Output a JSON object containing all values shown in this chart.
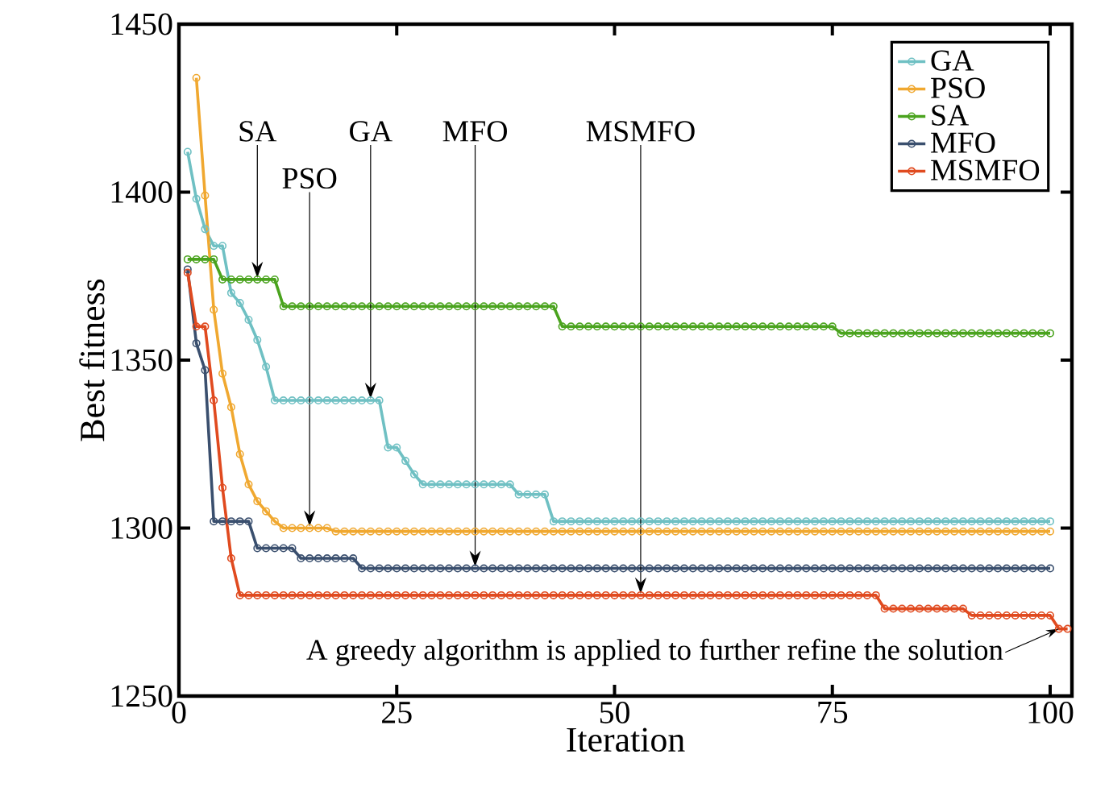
{
  "chart_data": {
    "type": "line",
    "xlabel": "Iteration",
    "ylabel": "Best fitness",
    "x": [
      1,
      2,
      3,
      4,
      5,
      6,
      7,
      8,
      9,
      10,
      11,
      12,
      13,
      14,
      15,
      16,
      17,
      18,
      19,
      20,
      21,
      22,
      23,
      24,
      25,
      26,
      27,
      28,
      29,
      30,
      31,
      32,
      33,
      34,
      35,
      36,
      37,
      38,
      39,
      40,
      41,
      42,
      43,
      44,
      45,
      46,
      47,
      48,
      49,
      50,
      51,
      52,
      53,
      54,
      55,
      56,
      57,
      58,
      59,
      60,
      61,
      62,
      63,
      64,
      65,
      66,
      67,
      68,
      69,
      70,
      71,
      72,
      73,
      74,
      75,
      76,
      77,
      78,
      79,
      80,
      81,
      82,
      83,
      84,
      85,
      86,
      87,
      88,
      89,
      90,
      91,
      92,
      93,
      94,
      95,
      96,
      97,
      98,
      99,
      100
    ],
    "series": [
      {
        "name": "GA",
        "color": "#6fc0c3",
        "values": [
          1412,
          1398,
          1389,
          1384,
          1384,
          1370,
          1367,
          1362,
          1356,
          1348,
          1338,
          1338,
          1338,
          1338,
          1338,
          1338,
          1338,
          1338,
          1338,
          1338,
          1338,
          1338,
          1338,
          1324,
          1324,
          1320,
          1316,
          1313,
          1313,
          1313,
          1313,
          1313,
          1313,
          1313,
          1313,
          1313,
          1313,
          1313,
          1310,
          1310,
          1310,
          1310,
          1302,
          1302,
          1302,
          1302,
          1302,
          1302,
          1302,
          1302,
          1302,
          1302,
          1302,
          1302,
          1302,
          1302,
          1302,
          1302,
          1302,
          1302,
          1302,
          1302,
          1302,
          1302,
          1302,
          1302,
          1302,
          1302,
          1302,
          1302,
          1302,
          1302,
          1302,
          1302,
          1302,
          1302,
          1302,
          1302,
          1302,
          1302,
          1302,
          1302,
          1302,
          1302,
          1302,
          1302,
          1302,
          1302,
          1302,
          1302,
          1302,
          1302,
          1302,
          1302,
          1302,
          1302,
          1302,
          1302,
          1302,
          1302
        ]
      },
      {
        "name": "PSO",
        "color": "#f0a830",
        "values": [
          null,
          1434,
          1399,
          1365,
          1346,
          1336,
          1322,
          1313,
          1308,
          1305,
          1302,
          1300,
          1300,
          1300,
          1300,
          1300,
          1300,
          1299,
          1299,
          1299,
          1299,
          1299,
          1299,
          1299,
          1299,
          1299,
          1299,
          1299,
          1299,
          1299,
          1299,
          1299,
          1299,
          1299,
          1299,
          1299,
          1299,
          1299,
          1299,
          1299,
          1299,
          1299,
          1299,
          1299,
          1299,
          1299,
          1299,
          1299,
          1299,
          1299,
          1299,
          1299,
          1299,
          1299,
          1299,
          1299,
          1299,
          1299,
          1299,
          1299,
          1299,
          1299,
          1299,
          1299,
          1299,
          1299,
          1299,
          1299,
          1299,
          1299,
          1299,
          1299,
          1299,
          1299,
          1299,
          1299,
          1299,
          1299,
          1299,
          1299,
          1299,
          1299,
          1299,
          1299,
          1299,
          1299,
          1299,
          1299,
          1299,
          1299,
          1299,
          1299,
          1299,
          1299,
          1299,
          1299,
          1299,
          1299,
          1299,
          1299
        ]
      },
      {
        "name": "SA",
        "color": "#4aa31e",
        "values": [
          1380,
          1380,
          1380,
          1380,
          1374,
          1374,
          1374,
          1374,
          1374,
          1374,
          1374,
          1366,
          1366,
          1366,
          1366,
          1366,
          1366,
          1366,
          1366,
          1366,
          1366,
          1366,
          1366,
          1366,
          1366,
          1366,
          1366,
          1366,
          1366,
          1366,
          1366,
          1366,
          1366,
          1366,
          1366,
          1366,
          1366,
          1366,
          1366,
          1366,
          1366,
          1366,
          1366,
          1360,
          1360,
          1360,
          1360,
          1360,
          1360,
          1360,
          1360,
          1360,
          1360,
          1360,
          1360,
          1360,
          1360,
          1360,
          1360,
          1360,
          1360,
          1360,
          1360,
          1360,
          1360,
          1360,
          1360,
          1360,
          1360,
          1360,
          1360,
          1360,
          1360,
          1360,
          1360,
          1358,
          1358,
          1358,
          1358,
          1358,
          1358,
          1358,
          1358,
          1358,
          1358,
          1358,
          1358,
          1358,
          1358,
          1358,
          1358,
          1358,
          1358,
          1358,
          1358,
          1358,
          1358,
          1358,
          1358,
          1358
        ]
      },
      {
        "name": "MFO",
        "color": "#3a4f6e",
        "values": [
          1377,
          1355,
          1347,
          1302,
          1302,
          1302,
          1302,
          1302,
          1294,
          1294,
          1294,
          1294,
          1294,
          1291,
          1291,
          1291,
          1291,
          1291,
          1291,
          1291,
          1288,
          1288,
          1288,
          1288,
          1288,
          1288,
          1288,
          1288,
          1288,
          1288,
          1288,
          1288,
          1288,
          1288,
          1288,
          1288,
          1288,
          1288,
          1288,
          1288,
          1288,
          1288,
          1288,
          1288,
          1288,
          1288,
          1288,
          1288,
          1288,
          1288,
          1288,
          1288,
          1288,
          1288,
          1288,
          1288,
          1288,
          1288,
          1288,
          1288,
          1288,
          1288,
          1288,
          1288,
          1288,
          1288,
          1288,
          1288,
          1288,
          1288,
          1288,
          1288,
          1288,
          1288,
          1288,
          1288,
          1288,
          1288,
          1288,
          1288,
          1288,
          1288,
          1288,
          1288,
          1288,
          1288,
          1288,
          1288,
          1288,
          1288,
          1288,
          1288,
          1288,
          1288,
          1288,
          1288,
          1288,
          1288,
          1288,
          1288
        ]
      },
      {
        "name": "MSMFO",
        "color": "#e04a1f",
        "x": [
          1,
          2,
          3,
          4,
          5,
          6,
          7,
          8,
          9,
          10,
          11,
          12,
          13,
          14,
          15,
          16,
          17,
          18,
          19,
          20,
          21,
          22,
          23,
          24,
          25,
          26,
          27,
          28,
          29,
          30,
          31,
          32,
          33,
          34,
          35,
          36,
          37,
          38,
          39,
          40,
          41,
          42,
          43,
          44,
          45,
          46,
          47,
          48,
          49,
          50,
          51,
          52,
          53,
          54,
          55,
          56,
          57,
          58,
          59,
          60,
          61,
          62,
          63,
          64,
          65,
          66,
          67,
          68,
          69,
          70,
          71,
          72,
          73,
          74,
          75,
          76,
          77,
          78,
          79,
          80,
          81,
          82,
          83,
          84,
          85,
          86,
          87,
          88,
          89,
          90,
          91,
          92,
          93,
          94,
          95,
          96,
          97,
          98,
          99,
          100,
          101,
          102
        ],
        "values": [
          1376,
          1360,
          1360,
          1338,
          1312,
          1291,
          1280,
          1280,
          1280,
          1280,
          1280,
          1280,
          1280,
          1280,
          1280,
          1280,
          1280,
          1280,
          1280,
          1280,
          1280,
          1280,
          1280,
          1280,
          1280,
          1280,
          1280,
          1280,
          1280,
          1280,
          1280,
          1280,
          1280,
          1280,
          1280,
          1280,
          1280,
          1280,
          1280,
          1280,
          1280,
          1280,
          1280,
          1280,
          1280,
          1280,
          1280,
          1280,
          1280,
          1280,
          1280,
          1280,
          1280,
          1280,
          1280,
          1280,
          1280,
          1280,
          1280,
          1280,
          1280,
          1280,
          1280,
          1280,
          1280,
          1280,
          1280,
          1280,
          1280,
          1280,
          1280,
          1280,
          1280,
          1280,
          1280,
          1280,
          1280,
          1280,
          1280,
          1280,
          1276,
          1276,
          1276,
          1276,
          1276,
          1276,
          1276,
          1276,
          1276,
          1276,
          1274,
          1274,
          1274,
          1274,
          1274,
          1274,
          1274,
          1274,
          1274,
          1274,
          1270,
          1270
        ]
      }
    ],
    "xlim": [
      0,
      102.5
    ],
    "xticks": [
      0,
      25,
      50,
      75,
      100
    ],
    "ylim": [
      1250,
      1450
    ],
    "yticks": [
      1250,
      1300,
      1350,
      1400,
      1450
    ],
    "grid": false,
    "legend": "top right",
    "marker": "circle",
    "line_style": "solid",
    "annotations": [
      {
        "text": "SA",
        "x": 9,
        "y": 1374
      },
      {
        "text": "PSO",
        "x": 15,
        "y": 1300
      },
      {
        "text": "GA",
        "x": 22,
        "y": 1338
      },
      {
        "text": "MFO",
        "x": 34,
        "y": 1288
      },
      {
        "text": "MSMFO",
        "x": 53,
        "y": 1280
      },
      {
        "text": "A greedy algorithm is applied to further refine the solution",
        "x": 101,
        "y": 1270
      }
    ]
  }
}
